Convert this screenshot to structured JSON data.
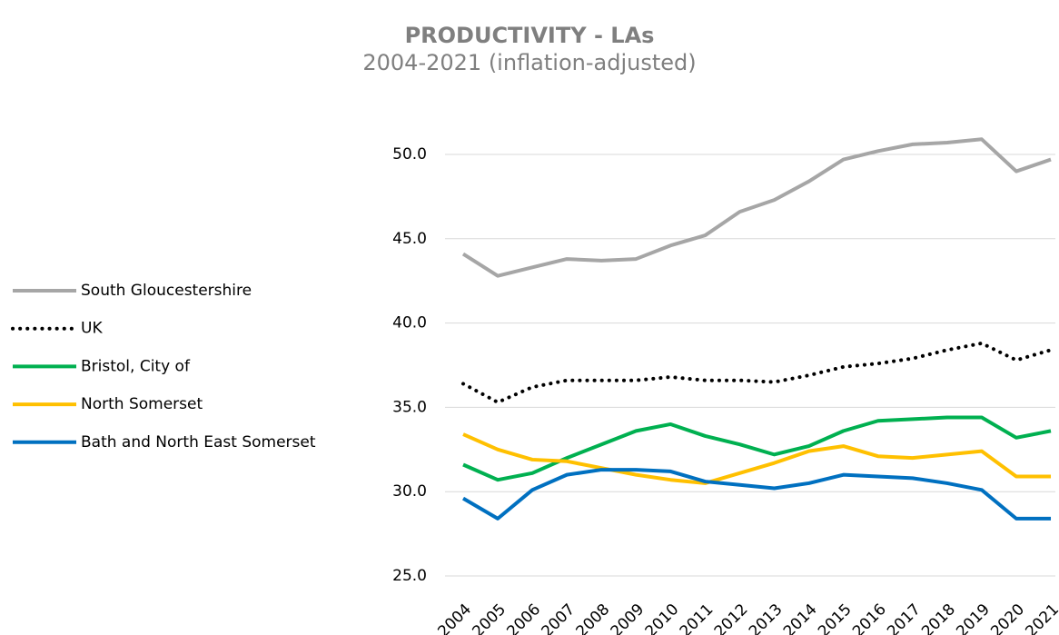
{
  "chart_data": {
    "type": "line",
    "title": "PRODUCTIVITY - LAs",
    "subtitle": "2004-2021 (inflation-adjusted)",
    "categories": [
      "2004",
      "2005",
      "2006",
      "2007",
      "2008",
      "2009",
      "2010",
      "2011",
      "2012",
      "2013",
      "2014",
      "2015",
      "2016",
      "2017",
      "2018",
      "2019",
      "2020",
      "2021"
    ],
    "series": [
      {
        "name": "South Gloucestershire",
        "color": "#a6a6a6",
        "values": [
          44.1,
          42.8,
          43.3,
          43.8,
          43.7,
          43.8,
          44.6,
          45.2,
          46.6,
          47.3,
          48.4,
          49.7,
          50.2,
          50.6,
          50.7,
          50.9,
          49.0,
          49.7
        ]
      },
      {
        "name": "UK",
        "color": "#000000",
        "dash": "dotted",
        "values": [
          36.4,
          35.3,
          36.2,
          36.6,
          36.6,
          36.6,
          36.8,
          36.6,
          36.6,
          36.5,
          36.9,
          37.4,
          37.6,
          37.9,
          38.4,
          38.8,
          37.8,
          38.4
        ]
      },
      {
        "name": "Bristol, City of",
        "color": "#00b050",
        "values": [
          31.6,
          30.7,
          31.1,
          32.0,
          32.8,
          33.6,
          34.0,
          33.3,
          32.8,
          32.2,
          32.7,
          33.6,
          34.2,
          34.3,
          34.4,
          34.4,
          33.2,
          33.6
        ]
      },
      {
        "name": "North Somerset",
        "color": "#ffc000",
        "values": [
          33.4,
          32.5,
          31.9,
          31.8,
          31.4,
          31.0,
          30.7,
          30.5,
          31.1,
          31.7,
          32.4,
          32.7,
          32.1,
          32.0,
          32.2,
          32.4,
          30.9,
          30.9
        ]
      },
      {
        "name": "Bath and North East Somerset",
        "color": "#0070c0",
        "values": [
          29.6,
          28.4,
          30.1,
          31.0,
          31.3,
          31.3,
          31.2,
          30.6,
          30.4,
          30.2,
          30.5,
          31.0,
          30.9,
          30.8,
          30.5,
          30.1,
          28.4,
          28.4
        ]
      }
    ],
    "ylim": [
      25,
      52
    ],
    "yticks": [
      {
        "value": 25,
        "label": "25.0"
      },
      {
        "value": 30,
        "label": "30.0"
      },
      {
        "value": 35,
        "label": "35.0"
      },
      {
        "value": 40,
        "label": "40.0"
      },
      {
        "value": 45,
        "label": "45.0"
      },
      {
        "value": 50,
        "label": "50.0"
      }
    ],
    "grid": true,
    "legend": "left"
  }
}
